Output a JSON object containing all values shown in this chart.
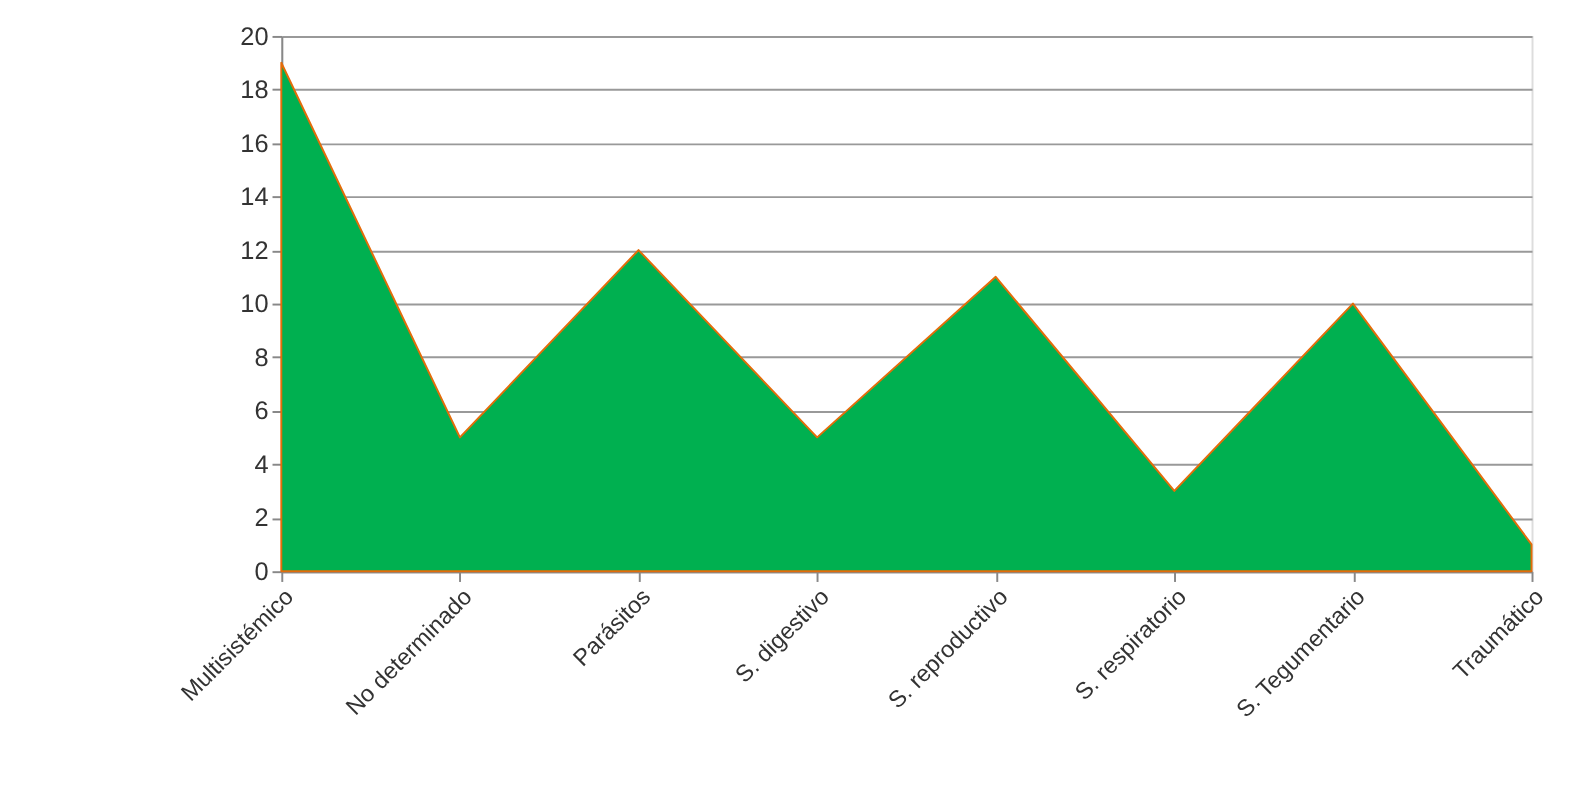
{
  "chart_data": {
    "type": "area",
    "categories": [
      "Multisistémico",
      "No determinado",
      "Parásitos",
      "S. digestivo",
      "S. reproductivo",
      "S. respiratorio",
      "S. Tegumentario",
      "Traumático"
    ],
    "series": [
      {
        "color": "#00b050",
        "values": [
          19,
          5,
          12,
          5,
          11,
          3,
          10,
          1
        ]
      }
    ],
    "ylim": [
      0,
      20
    ],
    "yticks": [
      0,
      2,
      4,
      6,
      8,
      10,
      12,
      14,
      16,
      18,
      20
    ],
    "grid": "y"
  }
}
